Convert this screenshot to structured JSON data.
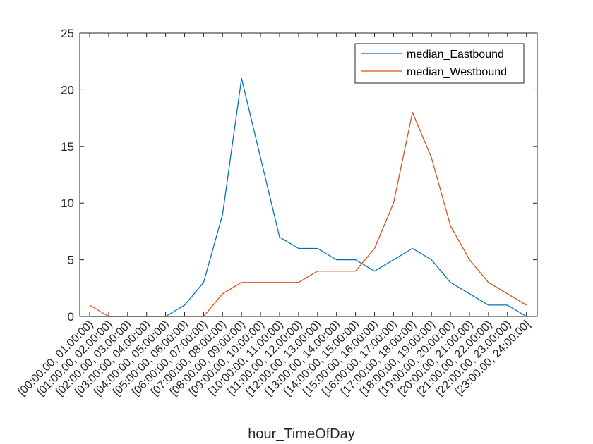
{
  "chart_data": {
    "type": "line",
    "xlabel": "hour_TimeOfDay",
    "ylabel": "",
    "ylim": [
      0,
      25
    ],
    "yticks": [
      0,
      5,
      10,
      15,
      20,
      25
    ],
    "grid": false,
    "legend_position": "top-right",
    "categories": [
      "[00:00:00, 01:00:00)",
      "[01:00:00, 02:00:00)",
      "[02:00:00, 03:00:00)",
      "[03:00:00, 04:00:00)",
      "[04:00:00, 05:00:00)",
      "[05:00:00, 06:00:00)",
      "[06:00:00, 07:00:00)",
      "[07:00:00, 08:00:00)",
      "[08:00:00, 09:00:00)",
      "[09:00:00, 10:00:00)",
      "[10:00:00, 11:00:00)",
      "[11:00:00, 12:00:00)",
      "[12:00:00, 13:00:00)",
      "[13:00:00, 14:00:00)",
      "[14:00:00, 15:00:00)",
      "[15:00:00, 16:00:00)",
      "[16:00:00, 17:00:00)",
      "[17:00:00, 18:00:00)",
      "[18:00:00, 19:00:00)",
      "[19:00:00, 20:00:00)",
      "[20:00:00, 21:00:00)",
      "[21:00:00, 22:00:00)",
      "[22:00:00, 23:00:00)",
      "[23:00:00, 24:00:00]"
    ],
    "series": [
      {
        "name": "median_Eastbound",
        "color": "#0072bd",
        "values": [
          0,
          0,
          0,
          0,
          0,
          1,
          3,
          9,
          21,
          14,
          7,
          6,
          6,
          5,
          5,
          4,
          5,
          6,
          5,
          3,
          2,
          1,
          1,
          0
        ]
      },
      {
        "name": "median_Westbound",
        "color": "#d95319",
        "values": [
          1,
          0,
          0,
          0,
          0,
          0,
          0,
          2,
          3,
          3,
          3,
          3,
          4,
          4,
          4,
          6,
          10,
          18,
          14,
          8,
          5,
          3,
          2,
          1
        ]
      }
    ]
  }
}
